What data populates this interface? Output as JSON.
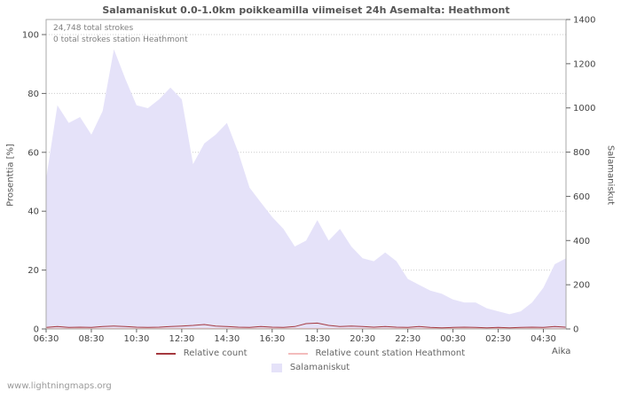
{
  "title": "Salamaniskut 0.0-1.0km poikkeamilla viimeiset 24h Asemalta: Heathmont",
  "annotations": {
    "total_strokes": "24,748 total strokes",
    "station_strokes": "0 total strokes station Heathmont"
  },
  "axes": {
    "left_label": "Prosenttia  [%]",
    "right_label": "Salamaniskut",
    "x_label": "Aika"
  },
  "legend": [
    {
      "label": "Relative count",
      "color": "#a5393f",
      "type": "line"
    },
    {
      "label": "Relative count station Heathmont",
      "color": "#f3bcbc",
      "type": "line"
    },
    {
      "label": "Salamaniskut",
      "color": "#e5e2f9",
      "type": "area"
    }
  ],
  "watermark": "www.lightningmaps.org",
  "colors": {
    "grid": "#cccccc",
    "border": "#aaaaaa",
    "tick_text": "#444444",
    "area_fill": "#e5e2f9",
    "relative_count_line": "#a5393f",
    "station_line": "#f3bcbc"
  },
  "chart_data": {
    "type": "area",
    "title": "Salamaniskut 0.0-1.0km poikkeamilla viimeiset 24h Asemalta: Heathmont",
    "xlabel": "Aika",
    "left_axis": {
      "label": "Prosenttia [%]",
      "range": [
        0,
        100
      ],
      "ticks": [
        0,
        20,
        40,
        60,
        80,
        100
      ]
    },
    "right_axis": {
      "label": "Salamaniskut",
      "range": [
        0,
        1400
      ],
      "ticks": [
        0,
        200,
        400,
        600,
        800,
        1000,
        1200,
        1400
      ]
    },
    "x_tick_labels": [
      "06:30",
      "08:30",
      "10:30",
      "12:30",
      "14:30",
      "16:30",
      "18:30",
      "20:30",
      "22:30",
      "00:30",
      "02:30",
      "04:30"
    ],
    "x": [
      "06:30",
      "07:00",
      "07:30",
      "08:00",
      "08:30",
      "09:00",
      "09:30",
      "10:00",
      "10:30",
      "11:00",
      "11:30",
      "12:00",
      "12:30",
      "13:00",
      "13:30",
      "14:00",
      "14:30",
      "15:00",
      "15:30",
      "16:00",
      "16:30",
      "17:00",
      "17:30",
      "18:00",
      "18:30",
      "19:00",
      "19:30",
      "20:00",
      "20:30",
      "21:00",
      "21:30",
      "22:00",
      "22:30",
      "23:00",
      "23:30",
      "00:00",
      "00:30",
      "01:00",
      "01:30",
      "02:00",
      "02:30",
      "03:00",
      "03:30",
      "04:00",
      "04:30",
      "05:00",
      "05:30"
    ],
    "series": [
      {
        "name": "Salamaniskut",
        "type": "area",
        "axis": "left_percent",
        "color": "#e5e2f9",
        "values": [
          51,
          76,
          70,
          72,
          66,
          74,
          95,
          85,
          76,
          75,
          78,
          82,
          78,
          56,
          63,
          66,
          70,
          60,
          48,
          43,
          38,
          34,
          28,
          30,
          37,
          30,
          34,
          28,
          24,
          23,
          26,
          23,
          17,
          15,
          13,
          12,
          10,
          9,
          9,
          7,
          6,
          5,
          6,
          9,
          14,
          22,
          24
        ]
      },
      {
        "name": "Relative count",
        "type": "line",
        "axis": "left_percent",
        "color": "#a5393f",
        "values": [
          0.5,
          0.8,
          0.5,
          0.6,
          0.5,
          0.8,
          1.0,
          0.8,
          0.6,
          0.5,
          0.6,
          0.8,
          1.0,
          1.2,
          1.5,
          1.0,
          0.8,
          0.6,
          0.5,
          0.8,
          0.6,
          0.5,
          0.8,
          1.8,
          2.0,
          1.2,
          0.8,
          1.0,
          0.8,
          0.6,
          0.8,
          0.6,
          0.5,
          0.8,
          0.5,
          0.4,
          0.5,
          0.6,
          0.5,
          0.4,
          0.5,
          0.4,
          0.5,
          0.6,
          0.5,
          0.8,
          0.6
        ]
      },
      {
        "name": "Relative count station Heathmont",
        "type": "line",
        "axis": "left_percent",
        "color": "#f3bcbc",
        "values": [
          0,
          0,
          0,
          0,
          0,
          0,
          0,
          0,
          0,
          0,
          0,
          0,
          0,
          0,
          0,
          0,
          0,
          0,
          0,
          0,
          0,
          0,
          0,
          0,
          0,
          0,
          0,
          0,
          0,
          0,
          0,
          0,
          0,
          0,
          0,
          0,
          0,
          0,
          0,
          0,
          0,
          0,
          0,
          0,
          0,
          0,
          0
        ]
      }
    ],
    "annotations_text": [
      "24,748 total strokes",
      "0 total strokes station Heathmont"
    ],
    "grid": true,
    "legend_position": "bottom"
  }
}
